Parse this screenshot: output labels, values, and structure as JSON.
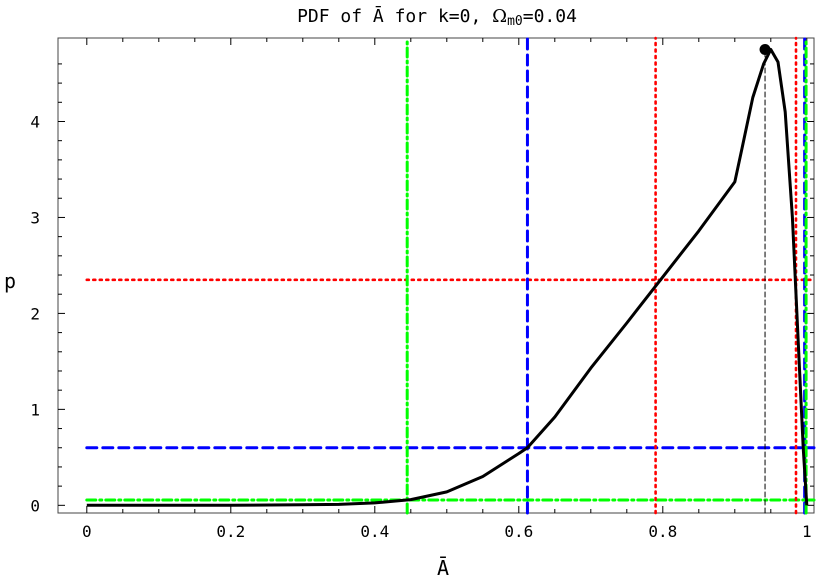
{
  "chart_data": {
    "type": "line",
    "title": "PDF of Ā for k=0, Ω_m0=0.04",
    "title_parts": {
      "prefix": "PDF of Ā for k=0, ",
      "symbol": "Ω",
      "subscript": "m0",
      "suffix": "=0.04"
    },
    "xlabel": "Ā",
    "ylabel": "p",
    "xlim": [
      -0.04,
      1.01
    ],
    "ylim": [
      -0.08,
      4.87
    ],
    "x_ticks": [
      0,
      0.2,
      0.4,
      0.6,
      0.8,
      1
    ],
    "x_tick_labels": [
      "0",
      "0.2",
      "0.4",
      "0.6",
      "0.8",
      "1"
    ],
    "y_ticks": [
      0,
      1,
      2,
      3,
      4
    ],
    "y_tick_labels": [
      "0",
      "1",
      "2",
      "3",
      "4"
    ],
    "grid": false,
    "series": [
      {
        "color": "#000000",
        "style": "solid",
        "x": [
          0.0,
          0.1,
          0.2,
          0.3,
          0.35,
          0.4,
          0.45,
          0.5,
          0.55,
          0.6,
          0.612,
          0.65,
          0.7,
          0.75,
          0.8,
          0.85,
          0.9,
          0.91,
          0.925,
          0.94,
          0.95,
          0.96,
          0.97,
          0.98,
          0.99,
          0.995,
          1.0
        ],
        "y": [
          0.0,
          0.0,
          0.0,
          0.005,
          0.01,
          0.025,
          0.06,
          0.14,
          0.3,
          0.54,
          0.6,
          0.92,
          1.43,
          1.9,
          2.38,
          2.86,
          3.37,
          3.72,
          4.25,
          4.6,
          4.75,
          4.62,
          4.1,
          3.0,
          1.4,
          0.6,
          0.0
        ]
      }
    ],
    "peak": {
      "x": 0.942,
      "y": 4.75
    },
    "vertical_lines": [
      {
        "x": 0.942,
        "color": "#000000",
        "style": "dashed-thin",
        "y_top": 4.75
      },
      {
        "x": 0.79,
        "color": "#ff0000",
        "style": "dotted"
      },
      {
        "x": 0.985,
        "color": "#ff0000",
        "style": "dotted"
      },
      {
        "x": 0.612,
        "color": "#0000ff",
        "style": "dashed"
      },
      {
        "x": 0.997,
        "color": "#0000ff",
        "style": "dashed"
      },
      {
        "x": 0.445,
        "color": "#00ff00",
        "style": "dash-dot"
      },
      {
        "x": 0.999,
        "color": "#00ff00",
        "style": "dash-dot"
      }
    ],
    "horizontal_lines": [
      {
        "y": 2.35,
        "color": "#ff0000",
        "style": "dotted"
      },
      {
        "y": 0.6,
        "color": "#0000ff",
        "style": "dashed"
      },
      {
        "y": 0.055,
        "color": "#00ff00",
        "style": "dash-dot"
      }
    ]
  }
}
